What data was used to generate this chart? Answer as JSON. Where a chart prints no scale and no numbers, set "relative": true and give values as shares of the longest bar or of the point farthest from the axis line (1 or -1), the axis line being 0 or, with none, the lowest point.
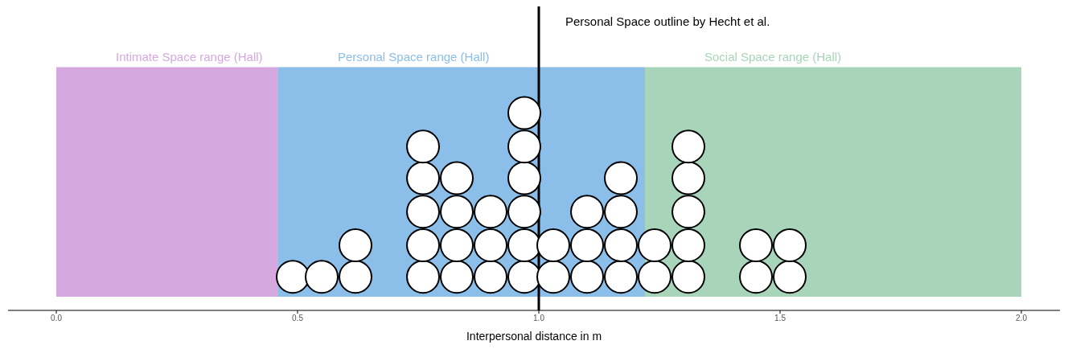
{
  "chart_data": {
    "type": "scatter",
    "xlabel": "Interpersonal distance in m",
    "x": [
      0.49,
      0.55,
      0.62,
      0.62,
      0.76,
      0.76,
      0.76,
      0.76,
      0.76,
      0.83,
      0.83,
      0.83,
      0.83,
      0.9,
      0.9,
      0.9,
      0.97,
      0.97,
      0.97,
      0.97,
      0.97,
      0.97,
      1.03,
      1.03,
      1.1,
      1.1,
      1.1,
      1.17,
      1.17,
      1.17,
      1.17,
      1.24,
      1.24,
      1.31,
      1.31,
      1.31,
      1.31,
      1.31,
      1.45,
      1.45,
      1.52,
      1.52
    ],
    "values": [
      0.17,
      0.17,
      0.17,
      0.33,
      0.17,
      0.33,
      0.5,
      0.67,
      0.83,
      0.17,
      0.33,
      0.5,
      0.67,
      0.17,
      0.33,
      0.5,
      0.17,
      0.33,
      0.5,
      0.67,
      0.83,
      1,
      0.17,
      0.33,
      0.17,
      0.33,
      0.5,
      0.17,
      0.33,
      0.5,
      0.67,
      0.17,
      0.33,
      0.17,
      0.33,
      0.5,
      0.67,
      0.83,
      0.17,
      0.33,
      0.17,
      0.33
    ],
    "relative": true,
    "color": "#ffffff",
    "marker": "circle",
    "xlim": [
      -0.1,
      2.08
    ],
    "xticks": [
      {
        "value": 0,
        "label": "0.0"
      },
      0.5,
      {
        "value": 1,
        "label": "1.0"
      },
      1.5,
      {
        "value": 2,
        "label": "2.0"
      }
    ],
    "tick_labels": "x",
    "bands": [
      {
        "axis": "x",
        "from": 0,
        "to": 0.46,
        "label": "Intimate Space range (Hall)",
        "color": "#d5a9e0"
      },
      {
        "axis": "x",
        "from": 0.46,
        "to": 1.22,
        "label": "Personal Space range (Hall)",
        "color": "#8bbee8"
      },
      {
        "axis": "x",
        "from": 1.22,
        "to": 2,
        "label": "Social Space range (Hall)",
        "color": "#a8d5b9"
      }
    ],
    "ref_lines": [
      {
        "axis": "x",
        "value": 1,
        "label": "Personal Space outline by Hecht et al.",
        "color": "#000000"
      }
    ]
  }
}
